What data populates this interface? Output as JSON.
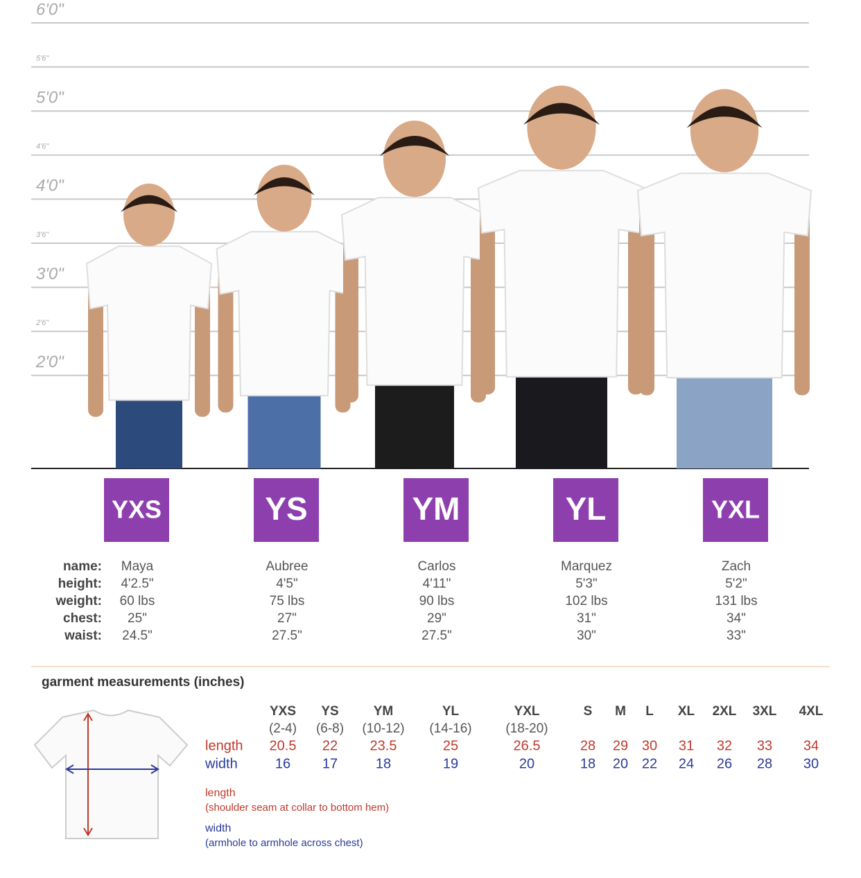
{
  "height_scale": [
    "6'0\"",
    "5'6\"",
    "5'0\"",
    "4'6\"",
    "4'0\"",
    "3'6\"",
    "3'0\"",
    "2'6\"",
    "2'0\""
  ],
  "field_labels": [
    "name:",
    "height:",
    "weight:",
    "chest:",
    "waist:"
  ],
  "sizes": [
    {
      "size": "YXS",
      "stats": [
        "Maya",
        "4'2.5\"",
        "60 lbs",
        "25\"",
        "24.5\""
      ]
    },
    {
      "size": "YS",
      "stats": [
        "Aubree",
        "4'5\"",
        "75 lbs",
        "27\"",
        "27.5\""
      ]
    },
    {
      "size": "YM",
      "stats": [
        "Carlos",
        "4'11\"",
        "90 lbs",
        "29\"",
        "27.5\""
      ]
    },
    {
      "size": "YL",
      "stats": [
        "Marquez",
        "5'3\"",
        "102 lbs",
        "31\"",
        "30\""
      ]
    },
    {
      "size": "YXL",
      "stats": [
        "Zach",
        "5'2\"",
        "131 lbs",
        "34\"",
        "33\""
      ]
    }
  ],
  "garment": {
    "title": "garment measurements (inches)",
    "row_labels": [
      "length",
      "width"
    ],
    "columns": [
      {
        "size": "YXS",
        "range": "(2-4)",
        "length": 20.5,
        "width": 16
      },
      {
        "size": "YS",
        "range": "(6-8)",
        "length": 22,
        "width": 17
      },
      {
        "size": "YM",
        "range": "(10-12)",
        "length": 23.5,
        "width": 18
      },
      {
        "size": "YL",
        "range": "(14-16)",
        "length": 25,
        "width": 19
      },
      {
        "size": "YXL",
        "range": "(18-20)",
        "length": 26.5,
        "width": 20
      },
      {
        "size": "S",
        "length": 28,
        "width": 18
      },
      {
        "size": "M",
        "length": 29,
        "width": 20
      },
      {
        "size": "L",
        "length": 30,
        "width": 22
      },
      {
        "size": "XL",
        "length": 31,
        "width": 24
      },
      {
        "size": "2XL",
        "length": 32,
        "width": 26
      },
      {
        "size": "3XL",
        "length": 33,
        "width": 28
      },
      {
        "size": "4XL",
        "length": 34,
        "width": 30
      }
    ],
    "notes": [
      {
        "title": "length",
        "text": "(shoulder seam at collar to bottom hem)"
      },
      {
        "title": "width",
        "text": "(armhole to armhole across chest)"
      }
    ]
  }
}
